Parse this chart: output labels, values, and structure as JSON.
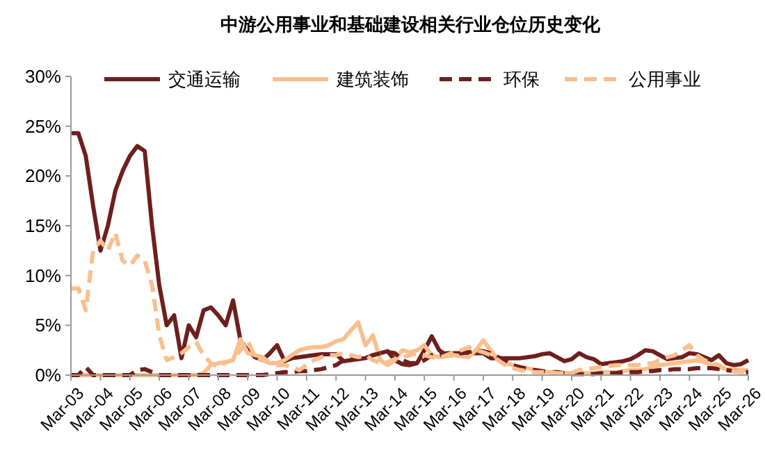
{
  "chart_data": {
    "type": "line",
    "title": "中游公用事业和基础建设相关行业仓位历史变化",
    "x": [
      "2003-03",
      "2003-06",
      "2003-09",
      "2003-12",
      "2004-03",
      "2004-06",
      "2004-09",
      "2004-12",
      "2005-03",
      "2005-06",
      "2005-09",
      "2005-12",
      "2006-03",
      "2006-06",
      "2006-09",
      "2006-12",
      "2007-03",
      "2007-06",
      "2007-09",
      "2007-12",
      "2008-03",
      "2008-06",
      "2008-09",
      "2008-12",
      "2009-03",
      "2009-06",
      "2009-09",
      "2009-12",
      "2010-03",
      "2010-06",
      "2010-09",
      "2010-12",
      "2011-03",
      "2011-06",
      "2011-09",
      "2011-12",
      "2012-03",
      "2012-06",
      "2012-09",
      "2012-12",
      "2013-03",
      "2013-06",
      "2013-09",
      "2013-12",
      "2014-03",
      "2014-06",
      "2014-09",
      "2014-12",
      "2015-03",
      "2015-06",
      "2015-09",
      "2015-12",
      "2016-03",
      "2016-06",
      "2016-09",
      "2016-12",
      "2017-03",
      "2017-06",
      "2017-09",
      "2017-12",
      "2018-03",
      "2018-06",
      "2018-09",
      "2018-12",
      "2019-03",
      "2019-06",
      "2019-09",
      "2019-12",
      "2020-03",
      "2020-06",
      "2020-09",
      "2020-12",
      "2021-03",
      "2021-06",
      "2021-09",
      "2021-12",
      "2022-03",
      "2022-06",
      "2022-09",
      "2022-12",
      "2023-03",
      "2023-06",
      "2023-09",
      "2023-12",
      "2024-03",
      "2024-06",
      "2024-09",
      "2024-12",
      "2025-03",
      "2025-06",
      "2025-09",
      "2025-12",
      "2026-03"
    ],
    "xlim": [
      "2003-03",
      "2026-03"
    ],
    "xticks": [
      {
        "value": "2003-03",
        "label": "Mar-03"
      },
      {
        "value": "2004-03",
        "label": "Mar-04"
      },
      {
        "value": "2005-03",
        "label": "Mar-05"
      },
      {
        "value": "2006-03",
        "label": "Mar-06"
      },
      {
        "value": "2007-03",
        "label": "Mar-07"
      },
      {
        "value": "2008-03",
        "label": "Mar-08"
      },
      {
        "value": "2009-03",
        "label": "Mar-09"
      },
      {
        "value": "2010-03",
        "label": "Mar-10"
      },
      {
        "value": "2011-03",
        "label": "Mar-11"
      },
      {
        "value": "2012-03",
        "label": "Mar-12"
      },
      {
        "value": "2013-03",
        "label": "Mar-13"
      },
      {
        "value": "2014-03",
        "label": "Mar-14"
      },
      {
        "value": "2015-03",
        "label": "Mar-15"
      },
      {
        "value": "2016-03",
        "label": "Mar-16"
      },
      {
        "value": "2017-03",
        "label": "Mar-17"
      },
      {
        "value": "2018-03",
        "label": "Mar-18"
      },
      {
        "value": "2019-03",
        "label": "Mar-19"
      },
      {
        "value": "2020-03",
        "label": "Mar-20"
      },
      {
        "value": "2021-03",
        "label": "Mar-21"
      },
      {
        "value": "2022-03",
        "label": "Mar-22"
      },
      {
        "value": "2023-03",
        "label": "Mar-23"
      },
      {
        "value": "2024-03",
        "label": "Mar-24"
      },
      {
        "value": "2025-03",
        "label": "Mar-25"
      },
      {
        "value": "2026-03",
        "label": "Mar-26"
      }
    ],
    "series": [
      {
        "name": "交通运输",
        "color": "#6e1f1d",
        "line_style": "solid",
        "values": [
          24.3,
          24.3,
          22,
          17,
          12.5,
          15,
          18.5,
          20.5,
          22,
          23,
          22.5,
          15,
          9,
          5,
          6,
          1.7,
          5,
          3.8,
          6.5,
          6.8,
          6,
          5,
          7.5,
          3.5,
          2.5,
          1.8,
          1.5,
          2.2,
          3.0,
          1.4,
          1.7,
          1.8,
          1.9,
          2.0,
          2.1,
          2.1,
          2.1,
          1.4,
          1.5,
          1.6,
          1.7,
          2.0,
          2.2,
          2.4,
          1.5,
          1.1,
          1.0,
          1.2,
          2.5,
          3.9,
          2.5,
          2.0,
          2.2,
          2.2,
          2.2,
          2.2,
          2.2,
          1.7,
          1.7,
          1.7,
          1.7,
          1.7,
          1.8,
          1.9,
          2.1,
          2.2,
          1.8,
          1.4,
          1.6,
          2.2,
          1.8,
          1.6,
          1.1,
          1.2,
          1.3,
          1.4,
          1.6,
          2.0,
          2.5,
          2.4,
          2.0,
          1.6,
          1.7,
          1.8,
          2.2,
          2.1,
          1.8,
          1.5,
          2.0,
          1.2,
          1.0,
          1.1,
          1.5
        ]
      },
      {
        "name": "建筑装饰",
        "color": "#f9bf8e",
        "line_style": "solid",
        "values": [
          0,
          0,
          0,
          0,
          0,
          0,
          0,
          0,
          0,
          0,
          0,
          0,
          0,
          0,
          0,
          0,
          0,
          0,
          0.2,
          1.0,
          1.2,
          1.3,
          1.5,
          3.6,
          2.2,
          2.0,
          1.8,
          1.2,
          1.2,
          1.5,
          2.0,
          2.5,
          2.7,
          2.8,
          2.8,
          3.0,
          3.4,
          3.6,
          4.5,
          5.3,
          3.0,
          4.0,
          1.5,
          1.0,
          1.5,
          2.5,
          2.3,
          2.5,
          3.0,
          2.0,
          1.8,
          1.9,
          2.0,
          1.9,
          1.8,
          2.5,
          3.5,
          2.5,
          1.5,
          1.2,
          1.0,
          0.8,
          0.7,
          0.5,
          0.4,
          0.3,
          0.3,
          0.2,
          0.2,
          0.2,
          0.2,
          0.2,
          0.3,
          0.3,
          0.3,
          0.4,
          0.5,
          0.5,
          0.6,
          0.8,
          1.0,
          1.1,
          1.2,
          1.3,
          1.4,
          1.5,
          1.3,
          1.0,
          0.8,
          0.6,
          0.6,
          0.5,
          0.5
        ]
      },
      {
        "name": "环保",
        "color": "#6e1f1d",
        "line_style": "dashed",
        "values": [
          0,
          0,
          0.8,
          0,
          0,
          0,
          0,
          0,
          0,
          0.5,
          0.6,
          0.3,
          0,
          0,
          0,
          0,
          0,
          0,
          0,
          0,
          0,
          0,
          0,
          0,
          0,
          0,
          0,
          0.1,
          0.2,
          0.3,
          0.3,
          0.4,
          0.4,
          0.5,
          0.6,
          0.8,
          1.0,
          1.5,
          1.7,
          1.8,
          1.5,
          2.0,
          2.2,
          2.3,
          2.2,
          1.5,
          1.2,
          1.2,
          1.5,
          2.0,
          2.0,
          2.2,
          2.2,
          2.2,
          2.3,
          2.5,
          2.4,
          2.2,
          1.8,
          1.5,
          1.0,
          0.8,
          0.6,
          0.5,
          0.4,
          0.3,
          0.3,
          0.2,
          0.1,
          0.1,
          0.1,
          0.1,
          0.2,
          0.2,
          0.2,
          0.3,
          0.3,
          0.3,
          0.4,
          0.4,
          0.5,
          0.5,
          0.6,
          0.6,
          0.6,
          0.7,
          0.7,
          0.7,
          0.6,
          0.5,
          0.4,
          0.3,
          0.3
        ]
      },
      {
        "name": "公用事业",
        "color": "#f9bf8e",
        "line_style": "dashed",
        "values": [
          8.7,
          8.7,
          6.5,
          12.5,
          13.5,
          12.5,
          14.3,
          11.5,
          11,
          12,
          11.5,
          9,
          4,
          1.5,
          1.8,
          2.2,
          2.8,
          3.3,
          2.0,
          1.2,
          0.8,
          1.3,
          1.5,
          2.5,
          3.5,
          1.8,
          1.5,
          1.2,
          1.0,
          1.0,
          0.8,
          0.5,
          1.0,
          1.5,
          1.8,
          2.0,
          2.0,
          2.2,
          2.0,
          1.8,
          2.0,
          1.5,
          1.2,
          1.3,
          1.6,
          1.8,
          2.0,
          2.2,
          2.0,
          1.8,
          1.7,
          2.0,
          2.3,
          2.5,
          2.8,
          2.5,
          2.3,
          2.0,
          1.5,
          1.0,
          0.7,
          0.5,
          0.4,
          0.3,
          0.3,
          0.3,
          0.2,
          0.2,
          0.2,
          0.5,
          0.6,
          0.7,
          0.8,
          0.9,
          1.0,
          1.0,
          1.0,
          1.0,
          1.1,
          1.2,
          1.5,
          1.8,
          2.0,
          2.5,
          3.0,
          2.0,
          1.5,
          1.2,
          1.0,
          0.6,
          0.4,
          0.3,
          0.3
        ]
      }
    ],
    "ylim": [
      0,
      30
    ],
    "yticks": [
      {
        "value": 0,
        "label": "0%"
      },
      {
        "value": 5,
        "label": "5%"
      },
      {
        "value": 10,
        "label": "10%"
      },
      {
        "value": 15,
        "label": "15%"
      },
      {
        "value": 20,
        "label": "20%"
      },
      {
        "value": 25,
        "label": "25%"
      },
      {
        "value": 30,
        "label": "30%"
      }
    ],
    "grid": false,
    "legend": "top right",
    "marker": "none"
  }
}
